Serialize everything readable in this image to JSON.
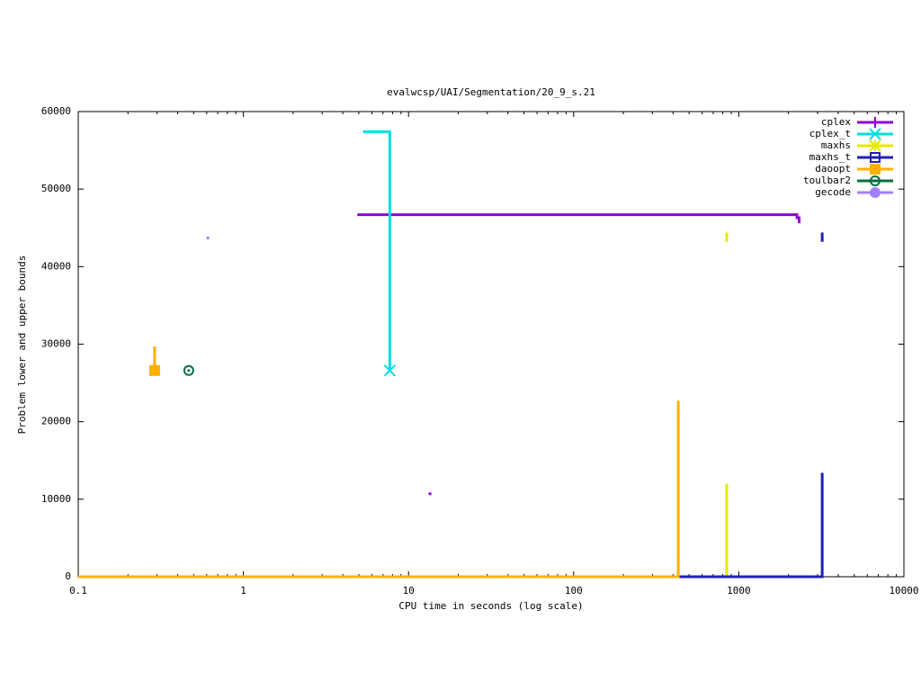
{
  "chart_data": {
    "type": "line",
    "title": "evalwcsp/UAI/Segmentation/20_9_s.21",
    "xlabel": "CPU time in seconds (log scale)",
    "ylabel": "Problem lower and upper bounds",
    "xscale": "log",
    "xlim": [
      0.1,
      10000
    ],
    "xticks": [
      0.1,
      1,
      10,
      100,
      1000,
      10000
    ],
    "ylim": [
      0,
      60000
    ],
    "yticks": [
      0,
      10000,
      20000,
      30000,
      40000,
      50000,
      60000
    ],
    "legend": "top-right",
    "series": [
      {
        "name": "cplex",
        "color": "#9400d3",
        "marker": "plus",
        "x": [
          4.9,
          2250,
          2250,
          2320,
          2320,
          null,
          13.5
        ],
        "values": [
          46700,
          46700,
          46300,
          46300,
          45600,
          null,
          10700
        ]
      },
      {
        "name": "cplex_t",
        "color": "#00e0e0",
        "marker": "cross",
        "x": [
          5.3,
          7.7,
          7.7
        ],
        "values": [
          57400,
          57400,
          26600
        ],
        "markers": {
          "x": [
            7.7
          ],
          "y": [
            26600
          ]
        }
      },
      {
        "name": "maxhs",
        "color": "#e8e800",
        "marker": "star",
        "x": [
          845,
          845,
          null,
          0.1,
          845,
          845
        ],
        "values": [
          44400,
          43200,
          null,
          0,
          0,
          12000
        ]
      },
      {
        "name": "maxhs_t",
        "color": "#2020b0",
        "marker": "box-open",
        "x": [
          3200,
          3200,
          null,
          0.1,
          3200,
          3200
        ],
        "values": [
          44400,
          43200,
          null,
          0,
          0,
          13400
        ]
      },
      {
        "name": "daoopt",
        "color": "#ffb000",
        "marker": "box-filled",
        "x": [
          0.29,
          0.29,
          null,
          0.1,
          430,
          430
        ],
        "values": [
          29700,
          26600,
          null,
          0,
          0,
          22700
        ],
        "markers": {
          "x": [
            0.29
          ],
          "y": [
            26600
          ]
        }
      },
      {
        "name": "toulbar2",
        "color": "#006f3f",
        "marker": "circle-open",
        "x": [],
        "values": [],
        "markers": {
          "x": [
            0.467
          ],
          "y": [
            26600
          ]
        }
      },
      {
        "name": "gecode",
        "color": "#a080ff",
        "marker": "circle-filled",
        "x": [
          0.61
        ],
        "values": [
          43700
        ]
      }
    ]
  }
}
